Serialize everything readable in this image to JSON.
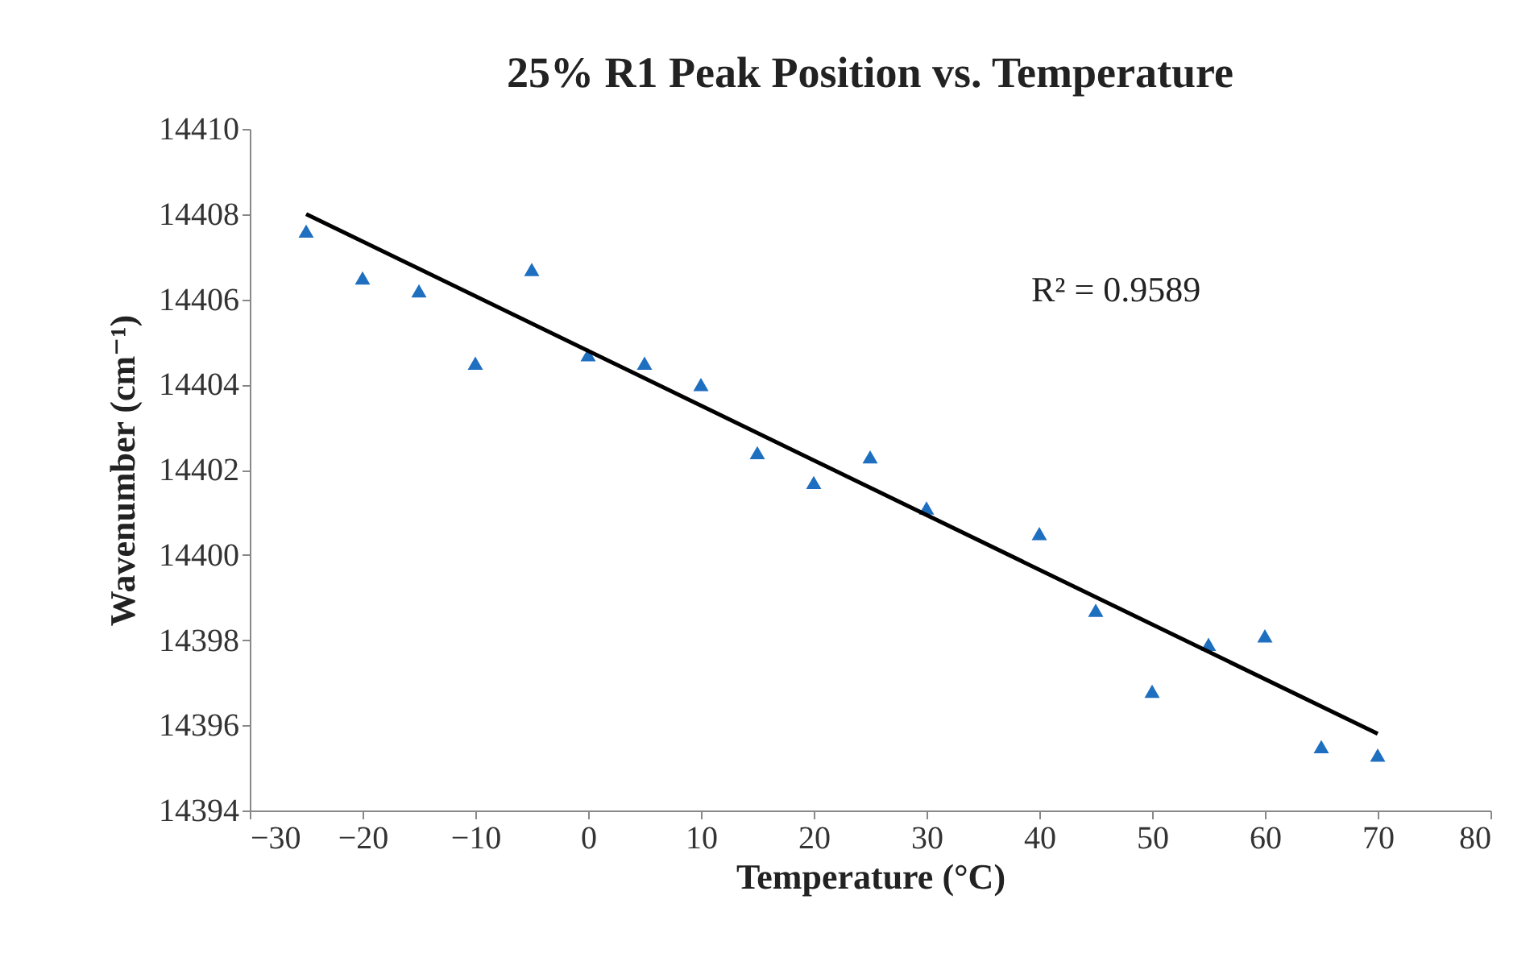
{
  "chart_data": {
    "type": "scatter",
    "title": "25% R1 Peak Position vs. Temperature",
    "xlabel": "Temperature (°C)",
    "ylabel": "Wavenumber (cm⁻¹)",
    "annotations": [
      "R² = 0.9589"
    ],
    "x": [
      -25,
      -20,
      -15,
      -10,
      -5,
      0,
      5,
      10,
      15,
      20,
      25,
      30,
      40,
      45,
      50,
      55,
      60,
      65,
      70
    ],
    "series": [
      {
        "color": "#1f6fc1",
        "marker": "triangle",
        "values": [
          14407.6,
          14406.5,
          14406.2,
          14404.5,
          14406.7,
          14404.7,
          14404.5,
          14404.0,
          14402.4,
          14401.7,
          14402.3,
          14401.1,
          14400.5,
          14398.7,
          14396.8,
          14397.9,
          14398.1,
          14395.5,
          14395.3
        ]
      },
      {
        "type": "line",
        "color": "#000000",
        "x": [
          -25,
          70
        ],
        "values": [
          14408.0,
          14395.8
        ]
      }
    ],
    "xlim": [
      -30,
      80
    ],
    "xticks": [
      -30,
      -20,
      -10,
      0,
      10,
      20,
      30,
      40,
      50,
      60,
      70,
      80
    ],
    "ylim": [
      14394,
      14410
    ],
    "yticks": [
      14394,
      14396,
      14398,
      14400,
      14402,
      14404,
      14406,
      14408,
      14410
    ],
    "grid": false
  }
}
